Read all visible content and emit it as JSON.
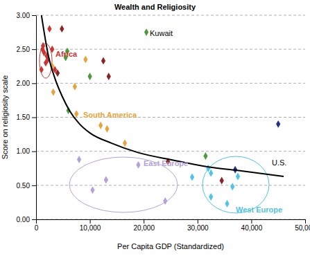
{
  "chart_data": {
    "type": "scatter",
    "title": "Wealth and Religiosity",
    "x_label": "Per Capita GDP (Standardized)",
    "y_label": "Score on religiosity scale",
    "xlim": [
      0,
      50000
    ],
    "ylim": [
      0,
      3
    ],
    "xticks": [
      0,
      {
        "value": 10000,
        "label": "10,000"
      },
      {
        "value": 20000,
        "label": "20,000"
      },
      {
        "value": 30000,
        "label": "30,000"
      },
      {
        "value": 40000,
        "label": "40,000"
      },
      {
        "value": 50000,
        "label": "50,000"
      }
    ],
    "yticks": [
      {
        "value": 0,
        "label": "0.00"
      },
      {
        "value": 0.5,
        "label": "0.50"
      },
      {
        "value": 1,
        "label": "1.00"
      },
      {
        "value": 1.5,
        "label": "1.50"
      },
      {
        "value": 2,
        "label": "2.00"
      },
      {
        "value": 2.5,
        "label": "2.50"
      },
      {
        "value": 3,
        "label": "3.00"
      }
    ],
    "grid": true,
    "series": [
      {
        "type": "scatter",
        "marker": "diamond",
        "x": [
          1000,
          1200,
          1500,
          2000,
          2500,
          1800,
          1300,
          2200,
          3000,
          3500,
          4800,
          4000,
          12500,
          13500,
          24500,
          34500,
          5500,
          5800,
          10000,
          20500,
          31500,
          6000,
          3000,
          3200,
          7200,
          9200,
          7500,
          12000,
          13200,
          16500,
          8000,
          10500,
          13000,
          19000,
          24000,
          29000,
          32000,
          32500,
          32500,
          35500,
          36500,
          37500,
          45000,
          37000
        ],
        "values": [
          2.2,
          2.5,
          2.45,
          2.4,
          2.8,
          2.3,
          2.55,
          2.35,
          2.5,
          2.2,
          2.8,
          2.15,
          2.33,
          2.1,
          0.85,
          0.57,
          2.38,
          2.47,
          2.1,
          2.75,
          0.93,
          1.6,
          2.25,
          1.87,
          1.95,
          2.35,
          1.55,
          1.38,
          1.33,
          1.12,
          0.88,
          0.43,
          0.58,
          0.8,
          0.27,
          0.62,
          0.75,
          0.68,
          0.33,
          0.23,
          0.48,
          0.63,
          1.4,
          0.73
        ],
        "colors": [
          "#cc3333",
          "#cc3333",
          "#cc3333",
          "#cc3333",
          "#cc3333",
          "#cc3333",
          "#cc3333",
          "#cc3333",
          "#cc3333",
          "#cc3333",
          "#8b2323",
          "#8b2323",
          "#8b2323",
          "#8b2323",
          "#8b2323",
          "#8b2323",
          "#4e9a3e",
          "#4e9a3e",
          "#4e9a3e",
          "#4e9a3e",
          "#4e9a3e",
          "#4e9a3e",
          "#e8a33d",
          "#e8a33d",
          "#e8a33d",
          "#e8a33d",
          "#e8a33d",
          "#e8a33d",
          "#e8a33d",
          "#e8a33d",
          "#b3a2d9",
          "#b3a2d9",
          "#b3a2d9",
          "#b3a2d9",
          "#b3a2d9",
          "#4fc3e8",
          "#4fc3e8",
          "#4fc3e8",
          "#4fc3e8",
          "#4fc3e8",
          "#4fc3e8",
          "#4fc3e8",
          "#1f2f8f",
          "#1f2f8f"
        ]
      },
      {
        "type": "line",
        "color": "#000000",
        "line_style": "solid",
        "x": [
          1000,
          2300,
          3600,
          4900,
          6200,
          8100,
          10000,
          14000,
          19000,
          25500,
          32000,
          38400,
          46000
        ],
        "values": [
          3.0,
          2.4,
          2.05,
          1.8,
          1.6,
          1.4,
          1.27,
          1.12,
          0.98,
          0.87,
          0.77,
          0.71,
          0.63
        ]
      }
    ],
    "annotations": [
      {
        "text": "Africa",
        "color": "#cc3333"
      },
      {
        "text": "South America",
        "color": "#e8a33d"
      },
      {
        "text": "East Europe",
        "color": "#b3a2d9"
      },
      {
        "text": "West Europe",
        "color": "#4fc3e8"
      },
      {
        "text": "Kuwait",
        "color": "#000000"
      },
      {
        "text": "U.S.",
        "color": "#000000"
      }
    ]
  }
}
